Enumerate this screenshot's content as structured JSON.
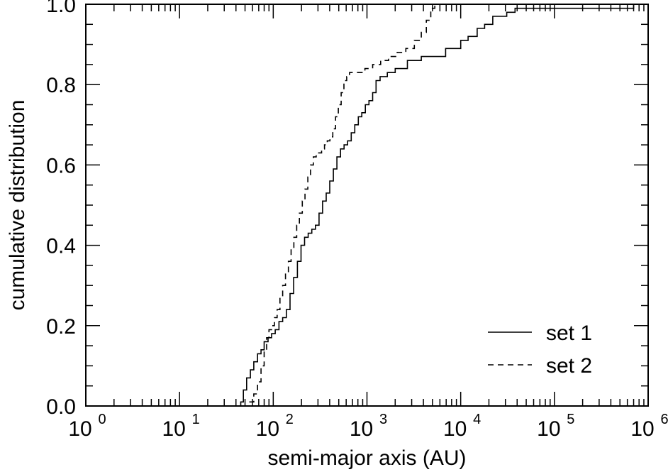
{
  "chart_data": {
    "type": "line",
    "xlabel": "semi-major axis (AU)",
    "ylabel": "cumulative distribution",
    "x_scale": "log",
    "xlim": [
      1,
      1000000
    ],
    "ylim": [
      0,
      1
    ],
    "x_ticks": [
      {
        "value": 1,
        "base": "10",
        "exp": "0"
      },
      {
        "value": 10,
        "base": "10",
        "exp": "1"
      },
      {
        "value": 100,
        "base": "10",
        "exp": "2"
      },
      {
        "value": 1000,
        "base": "10",
        "exp": "3"
      },
      {
        "value": 10000,
        "base": "10",
        "exp": "4"
      },
      {
        "value": 100000,
        "base": "10",
        "exp": "5"
      },
      {
        "value": 1000000,
        "base": "10",
        "exp": "6"
      }
    ],
    "y_ticks": [
      {
        "value": 0.0,
        "label": "0.0"
      },
      {
        "value": 0.2,
        "label": "0.2"
      },
      {
        "value": 0.4,
        "label": "0.4"
      },
      {
        "value": 0.6,
        "label": "0.6"
      },
      {
        "value": 0.8,
        "label": "0.8"
      },
      {
        "value": 1.0,
        "label": "1.0"
      }
    ],
    "grid": false,
    "legend_position": "bottom-right",
    "series": [
      {
        "name": "set 1",
        "line_style": "solid",
        "color": "#000000",
        "x": [
          41,
          45,
          48,
          52,
          57,
          62,
          68,
          74,
          80,
          88,
          96,
          105,
          115,
          126,
          138,
          151,
          165,
          181,
          198,
          216,
          236,
          258,
          282,
          308,
          336,
          367,
          401,
          438,
          478,
          522,
          570,
          622,
          679,
          741,
          808,
          881,
          960,
          1050,
          1150,
          1250,
          1380,
          1510,
          1650,
          1800,
          2000,
          2300,
          2700,
          3200,
          3800,
          4600,
          5600,
          6900,
          8400,
          10000,
          12000,
          15000,
          18000,
          22000,
          26000,
          31000,
          38000,
          47000,
          60000,
          80000,
          120000,
          200000,
          400000,
          700000
        ],
        "y": [
          0.0,
          0.01,
          0.04,
          0.07,
          0.09,
          0.11,
          0.13,
          0.14,
          0.16,
          0.17,
          0.18,
          0.19,
          0.21,
          0.22,
          0.24,
          0.28,
          0.32,
          0.36,
          0.4,
          0.42,
          0.43,
          0.44,
          0.45,
          0.48,
          0.51,
          0.53,
          0.56,
          0.59,
          0.62,
          0.64,
          0.65,
          0.66,
          0.68,
          0.7,
          0.72,
          0.73,
          0.75,
          0.76,
          0.78,
          0.81,
          0.82,
          0.82,
          0.83,
          0.83,
          0.84,
          0.84,
          0.86,
          0.86,
          0.87,
          0.87,
          0.87,
          0.89,
          0.89,
          0.91,
          0.92,
          0.94,
          0.95,
          0.97,
          0.97,
          0.98,
          0.99,
          0.99,
          0.99,
          0.99,
          0.99,
          0.99,
          0.99,
          1.0
        ]
      },
      {
        "name": "set 2",
        "line_style": "dashed",
        "color": "#000000",
        "x": [
          48,
          55,
          62,
          68,
          74,
          80,
          85,
          90,
          96,
          103,
          110,
          118,
          126,
          135,
          145,
          155,
          166,
          178,
          190,
          204,
          218,
          234,
          250,
          268,
          287,
          307,
          328,
          352,
          377,
          403,
          432,
          462,
          495,
          530,
          568,
          608,
          651,
          700,
          800,
          950,
          1150,
          1400,
          1700,
          2100,
          2600,
          3200,
          3800,
          4300,
          4800,
          5300,
          6000,
          8000,
          12000,
          20000,
          40000,
          100000,
          300000,
          700000
        ],
        "y": [
          0.0,
          0.01,
          0.03,
          0.06,
          0.1,
          0.14,
          0.17,
          0.19,
          0.2,
          0.22,
          0.24,
          0.27,
          0.3,
          0.33,
          0.36,
          0.39,
          0.42,
          0.45,
          0.48,
          0.51,
          0.54,
          0.57,
          0.6,
          0.62,
          0.63,
          0.63,
          0.64,
          0.65,
          0.66,
          0.67,
          0.69,
          0.72,
          0.75,
          0.78,
          0.81,
          0.82,
          0.83,
          0.83,
          0.83,
          0.84,
          0.85,
          0.86,
          0.87,
          0.88,
          0.89,
          0.91,
          0.93,
          0.96,
          0.99,
          1.0,
          1.0,
          1.0,
          1.0,
          1.0,
          1.0,
          1.0,
          1.0,
          1.0
        ]
      }
    ]
  }
}
